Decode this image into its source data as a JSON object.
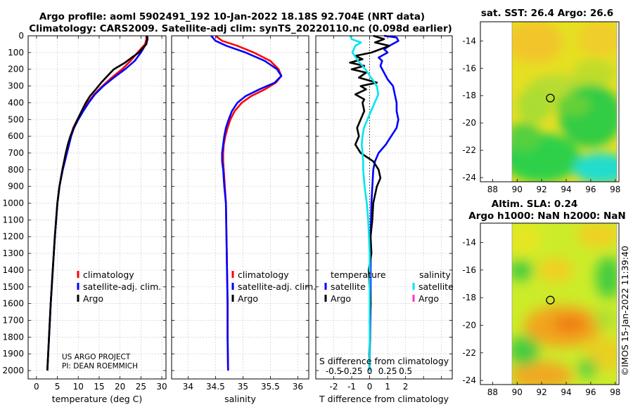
{
  "titles": {
    "line1": "Argo profile: aoml 5902491_192 10-Jan-2022 18.18S 92.704E (NRT data)",
    "line2": "Climatology: CARS2009. Satellite-adj clim: synTS_20220110.nc (0.098d earlier)"
  },
  "credits": {
    "line1": "US ARGO PROJECT",
    "line2": "PI: DEAN ROEMMICH",
    "imos": "©IMOS 15-Jan-2022 11:39:40"
  },
  "colors": {
    "climatology": "#ff0000",
    "satellite_adj": "#0000ff",
    "argo": "#000000",
    "salinity_satellite": "#00e5ee",
    "salinity_argo": "#ff33cc"
  },
  "legends": {
    "panel1": [
      "climatology",
      "satellite-adj. clim.",
      "Argo"
    ],
    "panel2": [
      "climatology",
      "satellite-adj. clim.",
      "Argo"
    ],
    "panel3": {
      "temperature_header": "temperature",
      "salinity_header": "salinity",
      "temp_items": [
        "satellite",
        "Argo"
      ],
      "sal_items": [
        "satellite",
        "Argo"
      ]
    }
  },
  "chart_data": [
    {
      "type": "line",
      "name": "temperature-profile",
      "xlabel": "temperature (deg C)",
      "ylabel": "",
      "xlim": [
        -2,
        31
      ],
      "ylim": [
        2050,
        0
      ],
      "xticks": [
        0,
        5,
        10,
        15,
        20,
        25,
        30
      ],
      "yticks": [
        0,
        100,
        200,
        300,
        400,
        500,
        600,
        700,
        800,
        900,
        1000,
        1100,
        1200,
        1300,
        1400,
        1500,
        1600,
        1700,
        1800,
        1900,
        2000
      ],
      "series": [
        {
          "name": "climatology",
          "color": "#ff0000",
          "depth": [
            0,
            20,
            50,
            100,
            150,
            200,
            250,
            300,
            350,
            400,
            450,
            500,
            550,
            600,
            700,
            800,
            900,
            1000,
            1200,
            1400,
            1600,
            1800,
            2000
          ],
          "values": [
            26.3,
            26.3,
            26.0,
            24.2,
            22.5,
            20.5,
            18.0,
            15.8,
            13.8,
            12.3,
            11.0,
            9.8,
            8.8,
            8.2,
            7.2,
            6.2,
            5.5,
            5.0,
            4.4,
            3.9,
            3.4,
            3.0,
            2.6
          ]
        },
        {
          "name": "satellite-adj. clim.",
          "color": "#0000ff",
          "depth": [
            0,
            20,
            50,
            100,
            150,
            200,
            250,
            300,
            350,
            400,
            450,
            500,
            550,
            600,
            700,
            800,
            900,
            1000,
            1200,
            1400,
            1600,
            1800,
            2000
          ],
          "values": [
            26.5,
            26.6,
            26.2,
            25.0,
            23.5,
            21.2,
            18.5,
            16.0,
            14.0,
            12.5,
            11.2,
            10.0,
            9.0,
            8.3,
            7.3,
            6.3,
            5.5,
            5.0,
            4.4,
            3.9,
            3.4,
            3.0,
            2.6
          ]
        },
        {
          "name": "Argo",
          "color": "#000000",
          "depth": [
            0,
            20,
            50,
            100,
            130,
            160,
            200,
            240,
            280,
            320,
            360,
            400,
            450,
            500,
            550,
            600,
            650,
            700,
            800,
            900,
            1000,
            1200,
            1400,
            1600,
            1800,
            2000
          ],
          "values": [
            26.4,
            26.5,
            26.3,
            24.5,
            22.8,
            21.2,
            18.5,
            17.0,
            15.5,
            14.2,
            12.8,
            11.8,
            10.8,
            9.8,
            8.9,
            8.1,
            7.5,
            7.0,
            6.2,
            5.5,
            5.0,
            4.4,
            3.9,
            3.4,
            3.0,
            2.6
          ]
        }
      ]
    },
    {
      "type": "line",
      "name": "salinity-profile",
      "xlabel": "salinity",
      "ylabel": "",
      "xlim": [
        33.7,
        36.2
      ],
      "ylim": [
        2050,
        0
      ],
      "xticks": [
        34,
        34.5,
        35,
        35.5,
        36
      ],
      "series": [
        {
          "name": "climatology",
          "color": "#ff0000",
          "depth": [
            0,
            30,
            60,
            100,
            150,
            200,
            240,
            280,
            320,
            360,
            400,
            450,
            500,
            550,
            600,
            650,
            700,
            750,
            800,
            900,
            1000,
            1200,
            1400,
            1600,
            1800,
            2000
          ],
          "values": [
            34.5,
            34.62,
            34.9,
            35.2,
            35.5,
            35.65,
            35.7,
            35.6,
            35.4,
            35.15,
            34.98,
            34.85,
            34.77,
            34.72,
            34.68,
            34.65,
            34.64,
            34.64,
            34.65,
            34.67,
            34.69,
            34.7,
            34.71,
            34.72,
            34.72,
            34.73
          ]
        },
        {
          "name": "satellite-adj. clim.",
          "color": "#0000ff",
          "depth": [
            0,
            30,
            60,
            100,
            150,
            200,
            240,
            280,
            320,
            360,
            400,
            450,
            500,
            550,
            600,
            650,
            700,
            750,
            800,
            900,
            1000,
            1200,
            1400,
            1600,
            1800,
            2000
          ],
          "values": [
            34.42,
            34.5,
            34.7,
            35.05,
            35.4,
            35.62,
            35.7,
            35.58,
            35.3,
            35.05,
            34.9,
            34.8,
            34.74,
            34.69,
            34.66,
            34.64,
            34.62,
            34.62,
            34.64,
            34.66,
            34.69,
            34.7,
            34.71,
            34.72,
            34.72,
            34.73
          ]
        }
      ]
    },
    {
      "type": "line",
      "name": "difference-profile",
      "xlabel": "T difference from climatology",
      "ylabel": "",
      "xlabel_top": "S difference from climatology",
      "xlim": [
        -3,
        4.6
      ],
      "ylim": [
        2050,
        0
      ],
      "xticks": [
        -2,
        -1,
        0,
        1,
        2,
        3,
        4
      ],
      "xtick_labels": [
        "-2",
        "-1",
        "0",
        "1",
        "2",
        "",
        ""
      ],
      "s_ticks": [
        -0.5,
        -0.25,
        0,
        0.25,
        0.5
      ],
      "s_tick_labels": [
        "-0.5",
        "-0.25",
        "0",
        "0.25",
        "0.5"
      ],
      "series": [
        {
          "name": "T satellite",
          "color": "#0000ff",
          "depth": [
            0,
            10,
            30,
            60,
            80,
            100,
            130,
            150,
            180,
            220,
            260,
            300,
            350,
            400,
            450,
            500,
            550,
            600,
            650,
            700,
            750,
            800,
            900,
            1000,
            1200,
            1400,
            1600,
            1800,
            2000
          ],
          "values": [
            0.8,
            1.5,
            1.6,
            1.1,
            0.8,
            1.0,
            0.5,
            0.7,
            0.6,
            0.8,
            1.0,
            1.3,
            1.4,
            1.5,
            1.5,
            1.6,
            1.5,
            1.2,
            0.9,
            0.5,
            0.3,
            0.2,
            0.15,
            0.1,
            0.05,
            0.05,
            0.05,
            0.02,
            0.0
          ]
        },
        {
          "name": "T Argo",
          "color": "#000000",
          "depth": [
            0,
            20,
            40,
            60,
            80,
            100,
            120,
            140,
            160,
            180,
            200,
            220,
            250,
            280,
            300,
            320,
            350,
            380,
            400,
            450,
            500,
            550,
            600,
            650,
            700,
            750,
            800,
            850,
            900,
            1000,
            1100,
            1200,
            1300,
            1400,
            1500,
            1600,
            1700,
            1800,
            1900,
            2000
          ],
          "values": [
            0.2,
            0.8,
            0.3,
            1.1,
            0.6,
            0.1,
            -0.8,
            -0.4,
            -1.1,
            -0.3,
            -1.0,
            -0.2,
            -0.6,
            0.4,
            -0.5,
            -0.2,
            -0.8,
            -0.3,
            -0.4,
            -0.3,
            -0.5,
            -0.7,
            -0.6,
            -0.8,
            -0.5,
            0.2,
            0.5,
            0.6,
            0.4,
            0.2,
            0.15,
            0.05,
            0.1,
            -0.05,
            0.0,
            0.05,
            0.0,
            0.02,
            -0.02,
            0.0
          ]
        },
        {
          "name": "S satellite",
          "color": "#00e5ee",
          "depth": [
            0,
            20,
            40,
            60,
            80,
            100,
            150,
            200,
            250,
            300,
            350,
            400,
            450,
            500,
            550,
            600,
            650,
            700,
            750,
            800,
            850,
            900,
            1000,
            1100,
            1200,
            1300,
            1400,
            1600,
            1800,
            2000
          ],
          "values": [
            -0.27,
            -0.25,
            -0.12,
            -0.2,
            -0.22,
            -0.24,
            -0.16,
            -0.06,
            0.02,
            0.1,
            0.12,
            0.07,
            0.02,
            -0.03,
            -0.08,
            -0.1,
            -0.11,
            -0.1,
            -0.09,
            -0.09,
            -0.08,
            -0.07,
            -0.04,
            -0.02,
            -0.01,
            0.0,
            0.0,
            0.0,
            0.0,
            0.0
          ]
        }
      ]
    },
    {
      "type": "heatmap",
      "name": "sst-map",
      "title": "sat. SST: 26.4 Argo: 26.6",
      "xticks": [
        88,
        90,
        92,
        94,
        96,
        98
      ],
      "yticks": [
        -14,
        -16,
        -18,
        -20,
        -22,
        -24
      ],
      "xlim": [
        87,
        98.3
      ],
      "ylim": [
        -24.3,
        -12.6
      ],
      "data_xlim": [
        90,
        98
      ],
      "marker": {
        "lon": 92.704,
        "lat": -18.18
      }
    },
    {
      "type": "heatmap",
      "name": "sla-map",
      "title": "Altim. SLA: 0.24",
      "subtitle": "Argo h1000: NaN h2000: NaN",
      "xticks": [
        88,
        90,
        92,
        94,
        96,
        98
      ],
      "yticks": [
        -14,
        -16,
        -18,
        -20,
        -22,
        -24
      ],
      "xlim": [
        87,
        98.3
      ],
      "ylim": [
        -24.3,
        -12.6
      ],
      "data_xlim": [
        90,
        98
      ],
      "marker": {
        "lon": 92.704,
        "lat": -18.18
      }
    }
  ]
}
